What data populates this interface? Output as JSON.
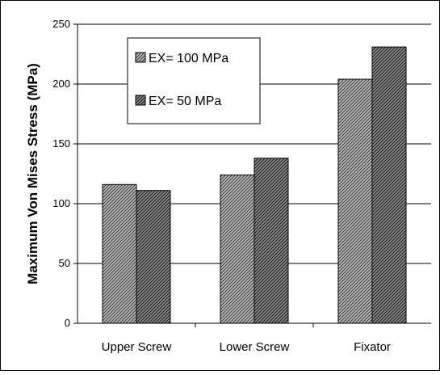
{
  "chart_data": {
    "type": "bar",
    "ylabel": "Maximum Von Mises Stress (MPa)",
    "xlabel": "",
    "categories": [
      "Upper Screw",
      "Lower Screw",
      "Fixator"
    ],
    "series": [
      {
        "name": "EX= 100 MPa",
        "values": [
          116,
          124,
          204
        ]
      },
      {
        "name": "EX= 50 MPa",
        "values": [
          111,
          138,
          231
        ]
      }
    ],
    "ylim": [
      0,
      250
    ],
    "yticks": [
      "0",
      "50",
      "100",
      "150",
      "200",
      "250"
    ],
    "grid": true,
    "legend_position": "top-left",
    "colors": {
      "series_fills": [
        "#b8b8b8",
        "#8a8a8a"
      ],
      "hatch": "#000000",
      "gridline": "#000000"
    }
  }
}
